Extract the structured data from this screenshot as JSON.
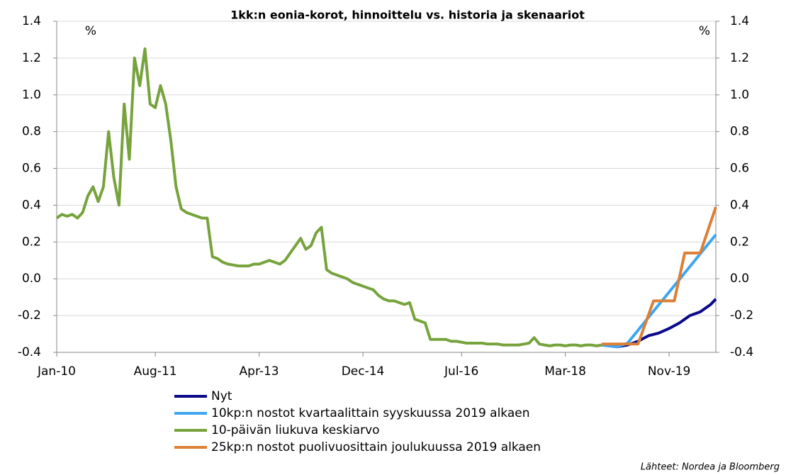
{
  "chart_data": {
    "type": "line",
    "title": "1kk:n eonia-korot, hinnoittelu  vs. historia  ja skenaariot",
    "ylabel": "%",
    "y2label": "%",
    "source": "Lähteet: Nordea ja Bloomberg",
    "xlim": [
      "2010-01",
      "2020-08"
    ],
    "xticks": [
      {
        "value": "2010-01",
        "label": "Jan-10"
      },
      {
        "value": "2011-08",
        "label": "Aug-11"
      },
      {
        "value": "2013-04",
        "label": "Apr-13"
      },
      {
        "value": "2014-12",
        "label": "Dec-14"
      },
      {
        "value": "2016-07",
        "label": "Jul-16"
      },
      {
        "value": "2018-03",
        "label": "Mar-18"
      },
      {
        "value": "2019-11",
        "label": "Nov-19"
      }
    ],
    "ylim": [
      -0.4,
      1.4
    ],
    "yticks": [
      1.4,
      1.2,
      {
        "value": 1.0,
        "label": "1.0"
      },
      0.8,
      0.6,
      0.4,
      0.2,
      {
        "value": 0.0,
        "label": "0.0"
      },
      -0.2,
      -0.4
    ],
    "y2lim": [
      -0.4,
      1.4
    ],
    "y2ticks": [
      1.4,
      1.2,
      {
        "value": 1.0,
        "label": "1.0"
      },
      0.8,
      0.6,
      0.4,
      0.2,
      {
        "value": 0.0,
        "label": "0.0"
      },
      -0.2,
      -0.4
    ],
    "grid": true,
    "series": [
      {
        "name": "Nyt",
        "color": "#0a0a8a",
        "x": [
          "2018-10",
          "2019-01",
          "2019-03",
          "2019-05",
          "2019-07",
          "2019-09",
          "2019-11",
          "2020-01",
          "2020-03",
          "2020-05",
          "2020-07",
          "2020-08"
        ],
        "values": [
          -0.36,
          -0.37,
          -0.36,
          -0.34,
          -0.31,
          -0.295,
          -0.27,
          -0.24,
          -0.2,
          -0.18,
          -0.14,
          -0.11
        ]
      },
      {
        "name": "10kp:n nostot kvartaalittain syyskuussa 2019 alkaen",
        "color": "#3ea6ef",
        "x": [
          "2018-10",
          "2019-01",
          "2019-03",
          "2019-05",
          "2020-08"
        ],
        "values": [
          -0.36,
          -0.37,
          -0.35,
          -0.28,
          0.24
        ]
      },
      {
        "name": "10-päivän liukuva keskiarvo",
        "color": "#77a33c",
        "x": [
          "2010-01",
          "2010-02",
          "2010-03",
          "2010-04",
          "2010-05",
          "2010-06",
          "2010-07",
          "2010-08",
          "2010-09",
          "2010-10",
          "2010-11",
          "2010-12",
          "2011-01",
          "2011-02",
          "2011-03",
          "2011-04",
          "2011-05",
          "2011-06",
          "2011-07",
          "2011-08",
          "2011-09",
          "2011-10",
          "2011-11",
          "2011-12",
          "2012-01",
          "2012-02",
          "2012-03",
          "2012-04",
          "2012-05",
          "2012-06",
          "2012-07",
          "2012-08",
          "2012-09",
          "2012-10",
          "2012-11",
          "2012-12",
          "2013-01",
          "2013-02",
          "2013-03",
          "2013-04",
          "2013-05",
          "2013-06",
          "2013-07",
          "2013-08",
          "2013-09",
          "2013-10",
          "2013-11",
          "2013-12",
          "2014-01",
          "2014-02",
          "2014-03",
          "2014-04",
          "2014-05",
          "2014-06",
          "2014-07",
          "2014-08",
          "2014-09",
          "2014-10",
          "2014-11",
          "2014-12",
          "2015-01",
          "2015-02",
          "2015-03",
          "2015-04",
          "2015-05",
          "2015-06",
          "2015-07",
          "2015-08",
          "2015-09",
          "2015-10",
          "2015-11",
          "2015-12",
          "2016-01",
          "2016-02",
          "2016-03",
          "2016-04",
          "2016-05",
          "2016-06",
          "2016-07",
          "2016-08",
          "2016-09",
          "2016-10",
          "2016-11",
          "2016-12",
          "2017-01",
          "2017-02",
          "2017-03",
          "2017-04",
          "2017-05",
          "2017-06",
          "2017-07",
          "2017-08",
          "2017-09",
          "2017-10",
          "2017-11",
          "2017-12",
          "2018-01",
          "2018-02",
          "2018-03",
          "2018-04",
          "2018-05",
          "2018-06",
          "2018-07",
          "2018-08",
          "2018-09",
          "2018-10"
        ],
        "values": [
          0.33,
          0.35,
          0.34,
          0.35,
          0.33,
          0.36,
          0.45,
          0.5,
          0.42,
          0.5,
          0.8,
          0.55,
          0.4,
          0.95,
          0.65,
          1.2,
          1.05,
          1.25,
          0.95,
          0.93,
          1.05,
          0.95,
          0.75,
          0.5,
          0.38,
          0.36,
          0.35,
          0.34,
          0.33,
          0.33,
          0.12,
          0.11,
          0.09,
          0.08,
          0.075,
          0.07,
          0.07,
          0.07,
          0.08,
          0.08,
          0.09,
          0.1,
          0.09,
          0.08,
          0.1,
          0.14,
          0.18,
          0.22,
          0.16,
          0.18,
          0.25,
          0.28,
          0.05,
          0.03,
          0.02,
          0.01,
          0.0,
          -0.02,
          -0.03,
          -0.04,
          -0.05,
          -0.06,
          -0.09,
          -0.11,
          -0.12,
          -0.12,
          -0.13,
          -0.14,
          -0.13,
          -0.22,
          -0.23,
          -0.24,
          -0.33,
          -0.33,
          -0.33,
          -0.33,
          -0.34,
          -0.34,
          -0.345,
          -0.35,
          -0.35,
          -0.35,
          -0.35,
          -0.355,
          -0.355,
          -0.355,
          -0.36,
          -0.36,
          -0.36,
          -0.36,
          -0.355,
          -0.35,
          -0.32,
          -0.355,
          -0.36,
          -0.365,
          -0.36,
          -0.36,
          -0.365,
          -0.36,
          -0.36,
          -0.365,
          -0.36,
          -0.36,
          -0.365,
          -0.36
        ]
      },
      {
        "name": "25kp:n nostot puolivuosittain joulukuussa 2019 alkaen",
        "color": "#dc7f37",
        "x": [
          "2018-10",
          "2019-05",
          "2019-08",
          "2019-12",
          "2020-02",
          "2020-05",
          "2020-08"
        ],
        "values": [
          -0.355,
          -0.355,
          -0.12,
          -0.12,
          0.14,
          0.14,
          0.39
        ]
      }
    ]
  }
}
